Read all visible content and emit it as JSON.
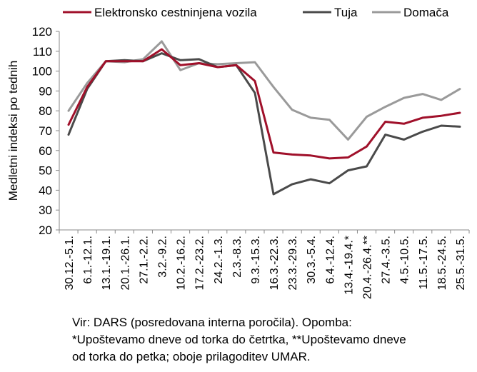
{
  "chart_data": {
    "type": "line",
    "ylabel": "Medletni indeksi po tednih",
    "xlabel": "",
    "ylim": [
      20,
      120
    ],
    "yticks": [
      20,
      30,
      40,
      50,
      60,
      70,
      80,
      90,
      100,
      110,
      120
    ],
    "grid": false,
    "legend_position": "top",
    "categories": [
      "30.12.-5.1.",
      "6.1.-12.1.",
      "13.1.-19.1.",
      "20.1.-26.1.",
      "27.1.-2.2.",
      "3.2.-9.2.",
      "10.2.-16.2.",
      "17.2.-23.2.",
      "24.2.-1.3.",
      "2.3.-8.3.",
      "9.3.-15.3.",
      "16.3.-22.3.",
      "23.3.-29.3.",
      "30.3.-5.4.",
      "6.4.-12.4.",
      "13.4.-19.4.*",
      "20.4.-26.4.**",
      "27.4.-3.5.",
      "4.5.-10.5.",
      "11.5.-17.5.",
      "18.5.-24.5.",
      "25.5.-31.5."
    ],
    "series": [
      {
        "name": "Elektronsko cestninjena vozila",
        "color": "#a0102a",
        "values": [
          73,
          92,
          105,
          105,
          105,
          111,
          103,
          104,
          102,
          103,
          95,
          59,
          58,
          57.5,
          56,
          56.5,
          62,
          74.5,
          73.5,
          76.5,
          77.5,
          79
        ]
      },
      {
        "name": "Tuja",
        "color": "#4a4a4a",
        "values": [
          68,
          91,
          105,
          105.5,
          105,
          109,
          105.5,
          106,
          102,
          103,
          89,
          38,
          43,
          45.5,
          43.5,
          50,
          52,
          68,
          65.5,
          69.5,
          72.5,
          72
        ]
      },
      {
        "name": "Domača",
        "color": "#9a9a9a",
        "values": [
          80,
          94,
          105,
          104.5,
          106,
          115,
          100.5,
          104,
          103.5,
          104,
          104.5,
          92,
          80.5,
          76.5,
          75.5,
          65.5,
          77,
          82,
          86.5,
          88.5,
          85.5,
          91
        ]
      }
    ]
  },
  "note": {
    "line1": "Vir: DARS (posredovana interna poročila). Opomba:",
    "line2": "*Upoštevamo dneve od torka do četrtka, **Upoštevamo dneve",
    "line3": "od torka do petka; oboje prilagoditev UMAR."
  }
}
